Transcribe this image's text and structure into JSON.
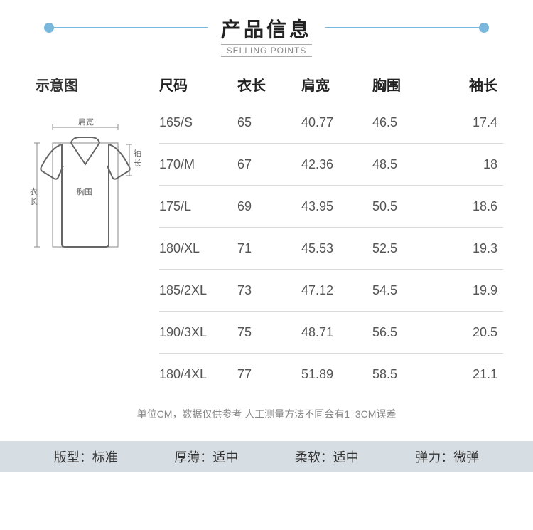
{
  "header": {
    "title": "产品信息",
    "subtitle": "SELLING POINTS",
    "line_color": "#7ab7dd"
  },
  "diagram": {
    "heading": "示意图",
    "labels": {
      "shoulder": "肩宽",
      "sleeve": "袖\n长",
      "chest": "胸围",
      "length": "衣\n长"
    }
  },
  "table": {
    "columns": [
      "尺码",
      "衣长",
      "肩宽",
      "胸围",
      "袖长"
    ],
    "rows": [
      [
        "165/S",
        "65",
        "40.77",
        "46.5",
        "17.4"
      ],
      [
        "170/M",
        "67",
        "42.36",
        "48.5",
        "18"
      ],
      [
        "175/L",
        "69",
        "43.95",
        "50.5",
        "18.6"
      ],
      [
        "180/XL",
        "71",
        "45.53",
        "52.5",
        "19.3"
      ],
      [
        "185/2XL",
        "73",
        "47.12",
        "54.5",
        "19.9"
      ],
      [
        "190/3XL",
        "75",
        "48.71",
        "56.5",
        "20.5"
      ],
      [
        "180/4XL",
        "77",
        "51.89",
        "58.5",
        "21.1"
      ]
    ],
    "border_color": "#d9d9d9"
  },
  "footnote": "单位CM，数据仅供参考 人工测量方法不同会有1–3CM误差",
  "attributes": {
    "bar_bg": "#d6dde3",
    "items": [
      {
        "label": "版型：",
        "value": "标准"
      },
      {
        "label": "厚薄：",
        "value": "适中"
      },
      {
        "label": "柔软：",
        "value": "适中"
      },
      {
        "label": "弹力：",
        "value": "微弹"
      }
    ]
  }
}
